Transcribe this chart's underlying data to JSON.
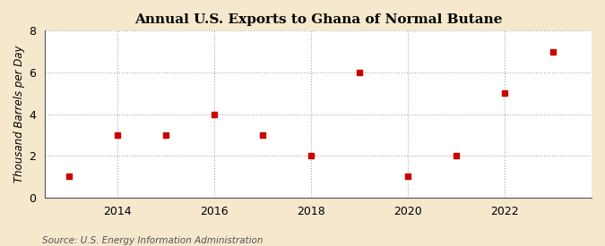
{
  "title": "Annual U.S. Exports to Ghana of Normal Butane",
  "ylabel": "Thousand Barrels per Day",
  "source": "Source: U.S. Energy Information Administration",
  "years": [
    2013,
    2014,
    2015,
    2016,
    2017,
    2018,
    2019,
    2020,
    2021,
    2022,
    2023
  ],
  "values": [
    1,
    3,
    3,
    4,
    3,
    2,
    6,
    1,
    2,
    5,
    7
  ],
  "ylim": [
    0,
    8
  ],
  "yticks": [
    0,
    2,
    4,
    6,
    8
  ],
  "xticks": [
    2014,
    2016,
    2018,
    2020,
    2022
  ],
  "xlim": [
    2012.5,
    2023.8
  ],
  "marker_color": "#cc0000",
  "marker": "s",
  "marker_size": 18,
  "plot_bg_color": "#ffffff",
  "fig_bg_color": "#f5e8cc",
  "grid_color": "#aaaaaa",
  "grid_style": ":",
  "grid_alpha": 1.0,
  "grid_linewidth": 0.8,
  "title_fontsize": 11,
  "label_fontsize": 8.5,
  "tick_fontsize": 9,
  "source_fontsize": 7.5
}
